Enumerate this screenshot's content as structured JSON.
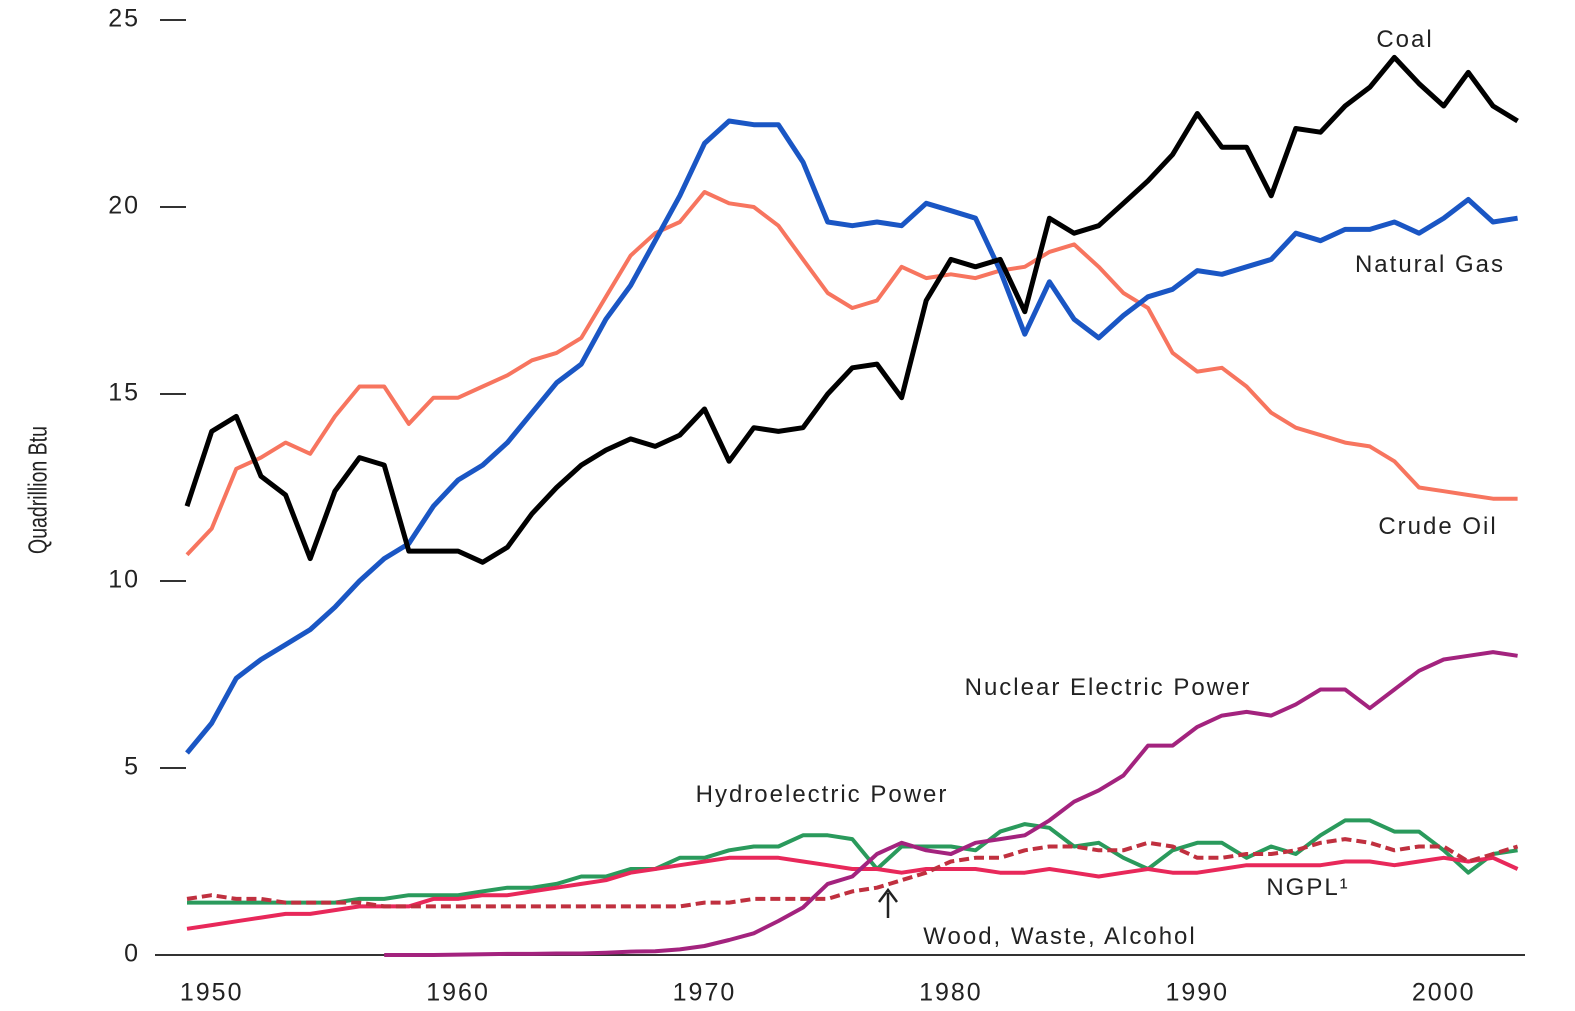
{
  "chart_data": {
    "type": "line",
    "ylabel": "Quadrillion Btu",
    "x": [
      1949,
      1950,
      1951,
      1952,
      1953,
      1954,
      1955,
      1956,
      1957,
      1958,
      1959,
      1960,
      1961,
      1962,
      1963,
      1964,
      1965,
      1966,
      1967,
      1968,
      1969,
      1970,
      1971,
      1972,
      1973,
      1974,
      1975,
      1976,
      1977,
      1978,
      1979,
      1980,
      1981,
      1982,
      1983,
      1984,
      1985,
      1986,
      1987,
      1988,
      1989,
      1990,
      1991,
      1992,
      1993,
      1994,
      1995,
      1996,
      1997,
      1998,
      1999,
      2000,
      2001,
      2002,
      2003
    ],
    "xlim": [
      1947.7,
      2003.3
    ],
    "xticks": [
      1950,
      1960,
      1970,
      1980,
      1990,
      2000
    ],
    "ylim": [
      0,
      25
    ],
    "yticks": [
      0,
      5,
      10,
      15,
      20,
      25
    ],
    "series": [
      {
        "name": "Coal",
        "color": "#000000",
        "values": [
          12.0,
          14.0,
          14.4,
          12.8,
          12.3,
          10.6,
          12.4,
          13.3,
          13.1,
          10.8,
          10.8,
          10.8,
          10.5,
          10.9,
          11.8,
          12.5,
          13.1,
          13.5,
          13.8,
          13.6,
          13.9,
          14.6,
          13.2,
          14.1,
          14.0,
          14.1,
          15.0,
          15.7,
          15.8,
          14.9,
          17.5,
          18.6,
          18.4,
          18.6,
          17.2,
          19.7,
          19.3,
          19.5,
          20.1,
          20.7,
          21.4,
          22.5,
          21.6,
          21.6,
          20.3,
          22.1,
          22.0,
          22.7,
          23.2,
          24.0,
          23.3,
          22.7,
          23.6,
          22.7,
          22.3
        ]
      },
      {
        "name": "Natural Gas",
        "color": "#1a56c4",
        "values": [
          5.4,
          6.2,
          7.4,
          7.9,
          8.3,
          8.7,
          9.3,
          10.0,
          10.6,
          11.0,
          12.0,
          12.7,
          13.1,
          13.7,
          14.5,
          15.3,
          15.8,
          17.0,
          17.9,
          19.1,
          20.3,
          21.7,
          22.3,
          22.2,
          22.2,
          21.2,
          19.6,
          19.5,
          19.6,
          19.5,
          20.1,
          19.9,
          19.7,
          18.3,
          16.6,
          18.0,
          17.0,
          16.5,
          17.1,
          17.6,
          17.8,
          18.3,
          18.2,
          18.4,
          18.6,
          19.3,
          19.1,
          19.4,
          19.4,
          19.6,
          19.3,
          19.7,
          20.2,
          19.6,
          19.7
        ]
      },
      {
        "name": "Crude Oil",
        "color": "#f7755f",
        "values": [
          10.7,
          11.4,
          13.0,
          13.3,
          13.7,
          13.4,
          14.4,
          15.2,
          15.2,
          14.2,
          14.9,
          14.9,
          15.2,
          15.5,
          15.9,
          16.1,
          16.5,
          17.6,
          18.7,
          19.3,
          19.6,
          20.4,
          20.1,
          20.0,
          19.5,
          18.6,
          17.7,
          17.3,
          17.5,
          18.4,
          18.1,
          18.2,
          18.1,
          18.3,
          18.4,
          18.8,
          19.0,
          18.4,
          17.7,
          17.3,
          16.1,
          15.6,
          15.7,
          15.2,
          14.5,
          14.1,
          13.9,
          13.7,
          13.6,
          13.2,
          12.5,
          12.4,
          12.3,
          12.2,
          12.2
        ]
      },
      {
        "name": "Nuclear Electric Power",
        "color": "#a3237e",
        "values": [
          null,
          null,
          null,
          null,
          null,
          null,
          null,
          null,
          0.0,
          0.0,
          0.0,
          0.01,
          0.02,
          0.03,
          0.03,
          0.04,
          0.04,
          0.06,
          0.09,
          0.1,
          0.15,
          0.24,
          0.4,
          0.58,
          0.91,
          1.27,
          1.9,
          2.1,
          2.7,
          3.0,
          2.8,
          2.7,
          3.0,
          3.1,
          3.2,
          3.6,
          4.1,
          4.4,
          4.8,
          5.6,
          5.6,
          6.1,
          6.4,
          6.5,
          6.4,
          6.7,
          7.1,
          7.1,
          6.6,
          7.1,
          7.6,
          7.9,
          8.0,
          8.1,
          8.0
        ]
      },
      {
        "name": "Hydroelectric Power",
        "color": "#2a9a5c",
        "values": [
          1.4,
          1.4,
          1.4,
          1.4,
          1.4,
          1.4,
          1.4,
          1.5,
          1.5,
          1.6,
          1.6,
          1.6,
          1.7,
          1.8,
          1.8,
          1.9,
          2.1,
          2.1,
          2.3,
          2.3,
          2.6,
          2.6,
          2.8,
          2.9,
          2.9,
          3.2,
          3.2,
          3.1,
          2.3,
          2.9,
          2.9,
          2.9,
          2.8,
          3.3,
          3.5,
          3.4,
          2.9,
          3.0,
          2.6,
          2.3,
          2.8,
          3.0,
          3.0,
          2.6,
          2.9,
          2.7,
          3.2,
          3.6,
          3.6,
          3.3,
          3.3,
          2.8,
          2.2,
          2.7,
          2.8
        ]
      },
      {
        "name": "NGPL¹",
        "color": "#e8285a",
        "values": [
          0.7,
          0.8,
          0.9,
          1.0,
          1.1,
          1.1,
          1.2,
          1.3,
          1.3,
          1.3,
          1.5,
          1.5,
          1.6,
          1.6,
          1.7,
          1.8,
          1.9,
          2.0,
          2.2,
          2.3,
          2.4,
          2.5,
          2.6,
          2.6,
          2.6,
          2.5,
          2.4,
          2.3,
          2.3,
          2.2,
          2.3,
          2.3,
          2.3,
          2.2,
          2.2,
          2.3,
          2.2,
          2.1,
          2.2,
          2.3,
          2.2,
          2.2,
          2.3,
          2.4,
          2.4,
          2.4,
          2.4,
          2.5,
          2.5,
          2.4,
          2.5,
          2.6,
          2.5,
          2.6,
          2.3
        ]
      },
      {
        "name": "Wood, Waste, Alcohol",
        "color": "#c0303f",
        "dash": true,
        "values": [
          1.5,
          1.6,
          1.5,
          1.5,
          1.4,
          1.4,
          1.4,
          1.4,
          1.3,
          1.3,
          1.3,
          1.3,
          1.3,
          1.3,
          1.3,
          1.3,
          1.3,
          1.3,
          1.3,
          1.3,
          1.3,
          1.4,
          1.4,
          1.5,
          1.5,
          1.5,
          1.5,
          1.7,
          1.8,
          2.0,
          2.2,
          2.5,
          2.6,
          2.6,
          2.8,
          2.9,
          2.9,
          2.8,
          2.8,
          3.0,
          2.9,
          2.6,
          2.6,
          2.7,
          2.7,
          2.8,
          3.0,
          3.1,
          3.0,
          2.8,
          2.9,
          2.9,
          2.5,
          2.7,
          2.9
        ]
      }
    ]
  }
}
